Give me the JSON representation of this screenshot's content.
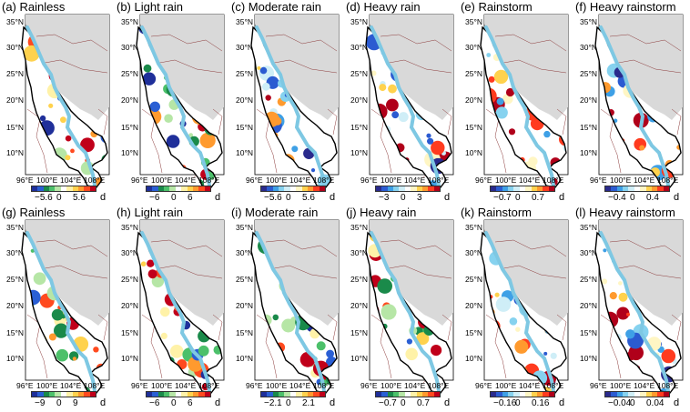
{
  "panels": [
    {
      "title": "(a) Rainless",
      "cb_ticks": [
        "−5.6",
        "0",
        "5.6"
      ],
      "unit": "d",
      "scheme": "div_blue_red_inv"
    },
    {
      "title": "(b) Light rain",
      "cb_ticks": [
        "−6",
        "0",
        "6"
      ],
      "unit": "d",
      "scheme": "div_blue_red_inv"
    },
    {
      "title": "(c) Moderate rain",
      "cb_ticks": [
        "−5.6",
        "0",
        "5.6"
      ],
      "unit": "d",
      "scheme": "div_blue_red"
    },
    {
      "title": "(d) Heavy rain",
      "cb_ticks": [
        "−3",
        "0",
        "3"
      ],
      "unit": "d",
      "scheme": "div_blue_red"
    },
    {
      "title": "(e) Rainstorm",
      "cb_ticks": [
        "−0.7",
        "0",
        "0.7"
      ],
      "unit": "d",
      "scheme": "div_blue_red"
    },
    {
      "title": "(f) Heavy rainstorm",
      "cb_ticks": [
        "−0.4",
        "0",
        "0.4"
      ],
      "unit": "d",
      "scheme": "div_blue_red"
    },
    {
      "title": "(g) Rainless",
      "cb_ticks": [
        "−9",
        "0",
        "9"
      ],
      "unit": "d",
      "scheme": "div_blue_red_inv"
    },
    {
      "title": "(h) Light rain",
      "cb_ticks": [
        "−6",
        "0",
        "6"
      ],
      "unit": "d",
      "scheme": "div_blue_red_inv"
    },
    {
      "title": "(i) Moderate rain",
      "cb_ticks": [
        "−2.1",
        "0",
        "2.1"
      ],
      "unit": "d",
      "scheme": "div_blue_red_inv"
    },
    {
      "title": "(j) Heavy rain",
      "cb_ticks": [
        "−0.7",
        "0",
        "0.7"
      ],
      "unit": "d",
      "scheme": "div_blue_red_inv"
    },
    {
      "title": "(k) Rainstorm",
      "cb_ticks": [
        "−0.16",
        "0",
        "0.16"
      ],
      "unit": "d",
      "scheme": "div_blue_red"
    },
    {
      "title": "(l) Heavy rainstorm",
      "cb_ticks": [
        "−0.04",
        "0",
        "0.04"
      ],
      "unit": "d",
      "scheme": "div_blue_red"
    }
  ],
  "lat_ticks": [
    "35°N",
    "30°N",
    "25°N",
    "20°N",
    "15°N",
    "10°N"
  ],
  "lon_ticks": [
    "96°E",
    "100°E",
    "104°E",
    "108°E"
  ],
  "colors": {
    "land": "#d9d9d9",
    "river": "#7ec8e3",
    "basin_outline": "#000000",
    "borders": "#8b3a3a",
    "div_blue_red": [
      "#2a2a8c",
      "#2b5bd1",
      "#3ea0e6",
      "#86d2ef",
      "#cfeef7",
      "#ffffff",
      "#fff6c4",
      "#ffd24d",
      "#ff9a2e",
      "#ff3b1f",
      "#b0001a"
    ],
    "div_blue_red_inv": [
      "#1f2f9a",
      "#2a5fd4",
      "#1a8a4a",
      "#4cc06a",
      "#b6e6a6",
      "#ffffff",
      "#fff2a8",
      "#ffd24d",
      "#ff9a2e",
      "#ff4a1f",
      "#c0001a"
    ]
  }
}
